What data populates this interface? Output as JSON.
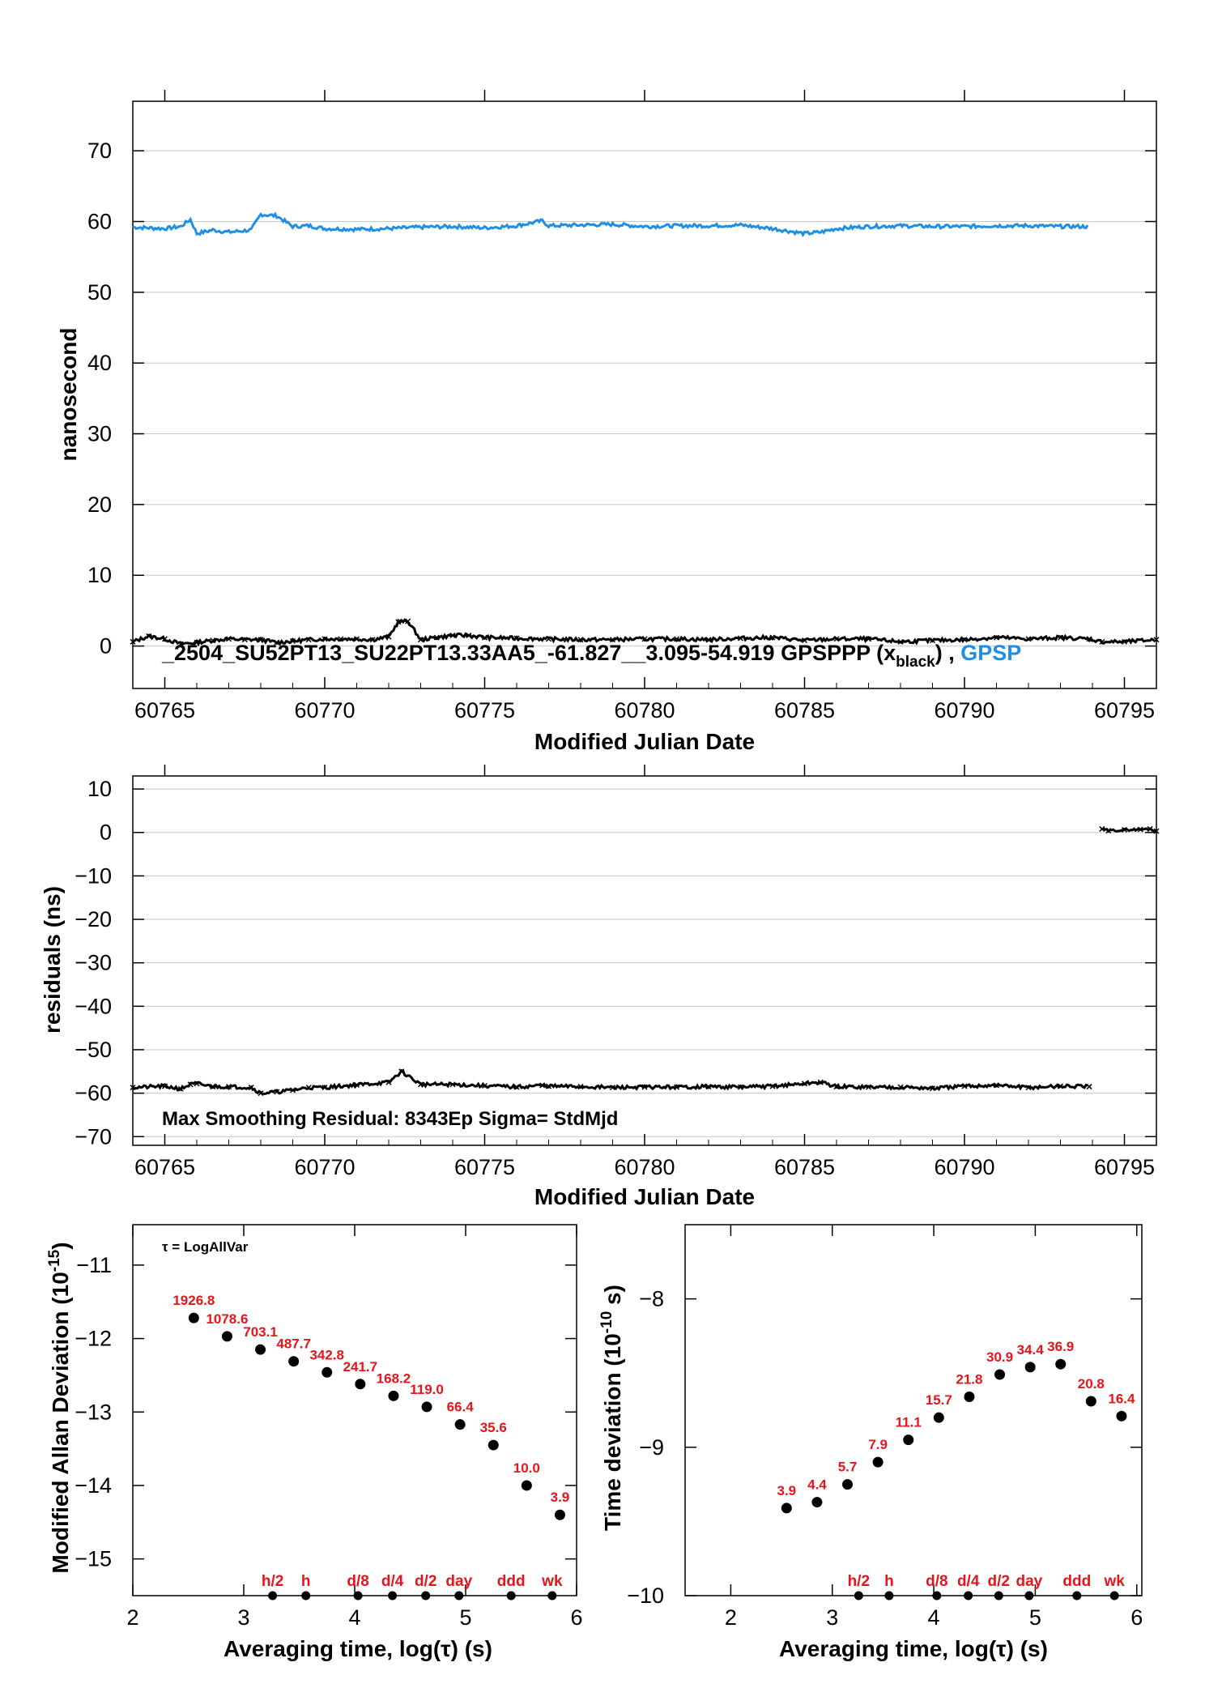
{
  "colors": {
    "black_series": "#000000",
    "blue_series": "#1f8fe6",
    "annotation_red": "#e8141c",
    "frame": "#000000"
  },
  "chart_data": [
    {
      "type": "scatter",
      "xlabel": "Modified Julian Date",
      "ylabel": "nanosecond",
      "xlim": [
        60764,
        60796
      ],
      "ylim": [
        -6,
        77
      ],
      "xticks": [
        60765,
        60770,
        60775,
        60780,
        60785,
        60790,
        60795
      ],
      "yticks": [
        0,
        10,
        20,
        30,
        40,
        50,
        60,
        70
      ],
      "legend": {
        "prefix": "_2504_SU52PT13_SU22PT13.33AA5_-61.827__3.095-54.919     GPSPPP (x",
        "subscript": "black",
        "middle": ") ,  ",
        "blue_text": "GPSP"
      },
      "series": [
        {
          "color": "#1f8fe6",
          "x": [
            60764.0,
            60765.0,
            60765.5,
            60765.8,
            60766.0,
            60766.5,
            60767.0,
            60767.7,
            60768.0,
            60768.5,
            60769.0,
            60769.5,
            60770.0,
            60771.0,
            60772.0,
            60773.0,
            60774.0,
            60775.0,
            60776.0,
            60776.8,
            60777.0,
            60778.0,
            60779.0,
            60780.0,
            60781.0,
            60782.0,
            60783.0,
            60784.0,
            60785.0,
            60785.5,
            60786.0,
            60787.0,
            60788.0,
            60789.0,
            60790.0,
            60791.0,
            60792.0,
            60793.0,
            60793.9
          ],
          "y": [
            59.2,
            59.0,
            59.3,
            60.3,
            58.3,
            58.8,
            58.5,
            58.8,
            61.0,
            60.8,
            59.3,
            59.4,
            59.0,
            58.9,
            59.0,
            59.2,
            59.3,
            59.1,
            59.4,
            60.1,
            59.4,
            59.5,
            59.6,
            59.3,
            59.4,
            59.4,
            59.5,
            59.0,
            58.3,
            58.5,
            59.0,
            59.3,
            59.4,
            59.3,
            59.3,
            59.4,
            59.4,
            59.3,
            59.3
          ]
        },
        {
          "color": "#000000",
          "x": [
            60764.0,
            60764.5,
            60765.0,
            60765.5,
            60766.0,
            60766.5,
            60767.0,
            60767.5,
            60768.0,
            60768.5,
            60769.0,
            60769.5,
            60770.0,
            60770.5,
            60771.0,
            60771.5,
            60772.0,
            60772.3,
            60772.6,
            60773.0,
            60773.5,
            60774.0,
            60774.5,
            60775.0,
            60776.0,
            60777.0,
            60778.0,
            60779.0,
            60780.0,
            60781.0,
            60782.0,
            60783.0,
            60784.0,
            60785.0,
            60786.0,
            60787.0,
            60788.0,
            60789.0,
            60790.0,
            60791.0,
            60792.0,
            60793.0,
            60793.9,
            60794.3,
            60795.0,
            60796.0
          ],
          "y": [
            0.6,
            1.4,
            1.0,
            0.3,
            0.5,
            0.8,
            1.0,
            0.9,
            0.9,
            0.5,
            0.7,
            0.9,
            1.0,
            1.0,
            1.0,
            0.9,
            1.3,
            3.4,
            3.5,
            0.9,
            1.2,
            1.5,
            1.5,
            1.2,
            1.1,
            1.0,
            0.9,
            0.9,
            1.0,
            1.0,
            0.9,
            1.1,
            1.2,
            0.8,
            1.0,
            1.0,
            0.6,
            0.8,
            0.9,
            1.2,
            1.0,
            1.2,
            1.0,
            0.6,
            0.6,
            0.9
          ]
        }
      ]
    },
    {
      "type": "scatter",
      "xlabel": "Modified Julian Date",
      "ylabel": "residuals (ns)",
      "xlim": [
        60764,
        60796
      ],
      "ylim": [
        -72,
        13
      ],
      "xticks": [
        60765,
        60770,
        60775,
        60780,
        60785,
        60790,
        60795
      ],
      "yticks": [
        10,
        0,
        -10,
        -20,
        -30,
        -40,
        -50,
        -60,
        -70
      ],
      "annotation": "Max Smoothing Residual: 8343Ep  Sigma= StdMjd",
      "series": [
        {
          "color": "#000000",
          "x": [
            60764.0,
            60765.0,
            60765.5,
            60765.8,
            60766.0,
            60766.5,
            60767.0,
            60767.7,
            60768.0,
            60768.5,
            60769.0,
            60769.5,
            60770.0,
            60771.0,
            60772.0,
            60772.4,
            60773.0,
            60774.0,
            60775.0,
            60776.0,
            60776.8,
            60777.0,
            60778.0,
            60779.0,
            60780.0,
            60781.0,
            60782.0,
            60783.0,
            60784.0,
            60785.0,
            60785.5,
            60786.0,
            60787.0,
            60788.0,
            60789.0,
            60790.0,
            60791.0,
            60792.0,
            60793.0,
            60793.9
          ],
          "y": [
            -58.7,
            -58.4,
            -59.0,
            -58.0,
            -57.8,
            -58.5,
            -58.5,
            -58.7,
            -60.0,
            -59.7,
            -59.3,
            -58.7,
            -58.7,
            -58.1,
            -57.5,
            -55.0,
            -58.0,
            -58.0,
            -58.3,
            -58.6,
            -58.2,
            -58.4,
            -58.5,
            -58.7,
            -58.6,
            -58.6,
            -58.5,
            -58.6,
            -58.4,
            -57.8,
            -57.5,
            -58.5,
            -58.6,
            -58.6,
            -58.9,
            -58.4,
            -58.2,
            -58.7,
            -58.4,
            -58.5
          ]
        },
        {
          "color": "#000000",
          "x": [
            60794.3,
            60794.5,
            60795.0,
            60795.5,
            60795.8,
            60796.0
          ],
          "y": [
            0.8,
            0.4,
            0.6,
            0.7,
            0.8,
            0.3
          ]
        }
      ]
    },
    {
      "type": "scatter",
      "xlabel": "Averaging time, log(τ) (s)",
      "ylabel": "Modified Allan Deviation (10",
      "ylabel_sup": "-15",
      "ylabel_end": ")",
      "xlim": [
        2,
        6
      ],
      "ylim": [
        -15.5,
        -10.45
      ],
      "xticks": [
        2,
        3,
        4,
        5,
        6
      ],
      "yticks": [
        -11,
        -12,
        -13,
        -14,
        -15
      ],
      "note": "τ = LogAllVar",
      "points": [
        {
          "x": 2.55,
          "y": -11.72,
          "label": "1926.8"
        },
        {
          "x": 2.85,
          "y": -11.97,
          "label": "1078.6"
        },
        {
          "x": 3.15,
          "y": -12.15,
          "label": "703.1"
        },
        {
          "x": 3.45,
          "y": -12.31,
          "label": "487.7"
        },
        {
          "x": 3.75,
          "y": -12.46,
          "label": "342.8"
        },
        {
          "x": 4.05,
          "y": -12.62,
          "label": "241.7"
        },
        {
          "x": 4.35,
          "y": -12.78,
          "label": "168.2"
        },
        {
          "x": 4.65,
          "y": -12.93,
          "label": "119.0"
        },
        {
          "x": 4.95,
          "y": -13.17,
          "label": "66.4"
        },
        {
          "x": 5.25,
          "y": -13.45,
          "label": "35.6"
        },
        {
          "x": 5.55,
          "y": -14.0,
          "label": "10.0"
        },
        {
          "x": 5.85,
          "y": -14.4,
          "label": "3.9"
        }
      ],
      "markers": [
        {
          "x": 3.26,
          "label": "h/2"
        },
        {
          "x": 3.56,
          "label": "h"
        },
        {
          "x": 4.03,
          "label": "d/8"
        },
        {
          "x": 4.34,
          "label": "d/4"
        },
        {
          "x": 4.64,
          "label": "d/2"
        },
        {
          "x": 4.94,
          "label": "day"
        },
        {
          "x": 5.41,
          "label": "ddd"
        },
        {
          "x": 5.78,
          "label": "wk"
        }
      ]
    },
    {
      "type": "scatter",
      "xlabel": "Averaging time, log(τ) (s)",
      "ylabel": "Time deviation (10",
      "ylabel_sup": "-10",
      "ylabel_end": " s)",
      "xlim": [
        1.55,
        6.05
      ],
      "ylim": [
        -10.0,
        -7.5
      ],
      "xticks": [
        2,
        3,
        4,
        5,
        6
      ],
      "yticks": [
        -8,
        -9,
        -10
      ],
      "points": [
        {
          "x": 2.55,
          "y": -9.41,
          "label": "3.9"
        },
        {
          "x": 2.85,
          "y": -9.37,
          "label": "4.4"
        },
        {
          "x": 3.15,
          "y": -9.25,
          "label": "5.7"
        },
        {
          "x": 3.45,
          "y": -9.1,
          "label": "7.9"
        },
        {
          "x": 3.75,
          "y": -8.95,
          "label": "11.1"
        },
        {
          "x": 4.05,
          "y": -8.8,
          "label": "15.7"
        },
        {
          "x": 4.35,
          "y": -8.66,
          "label": "21.8"
        },
        {
          "x": 4.65,
          "y": -8.51,
          "label": "30.9"
        },
        {
          "x": 4.95,
          "y": -8.46,
          "label": "34.4"
        },
        {
          "x": 5.25,
          "y": -8.44,
          "label": "36.9"
        },
        {
          "x": 5.55,
          "y": -8.69,
          "label": "20.8"
        },
        {
          "x": 5.85,
          "y": -8.79,
          "label": "16.4"
        }
      ],
      "markers": [
        {
          "x": 3.26,
          "label": "h/2"
        },
        {
          "x": 3.56,
          "label": "h"
        },
        {
          "x": 4.03,
          "label": "d/8"
        },
        {
          "x": 4.34,
          "label": "d/4"
        },
        {
          "x": 4.64,
          "label": "d/2"
        },
        {
          "x": 4.94,
          "label": "day"
        },
        {
          "x": 5.41,
          "label": "ddd"
        },
        {
          "x": 5.78,
          "label": "wk"
        }
      ]
    }
  ]
}
